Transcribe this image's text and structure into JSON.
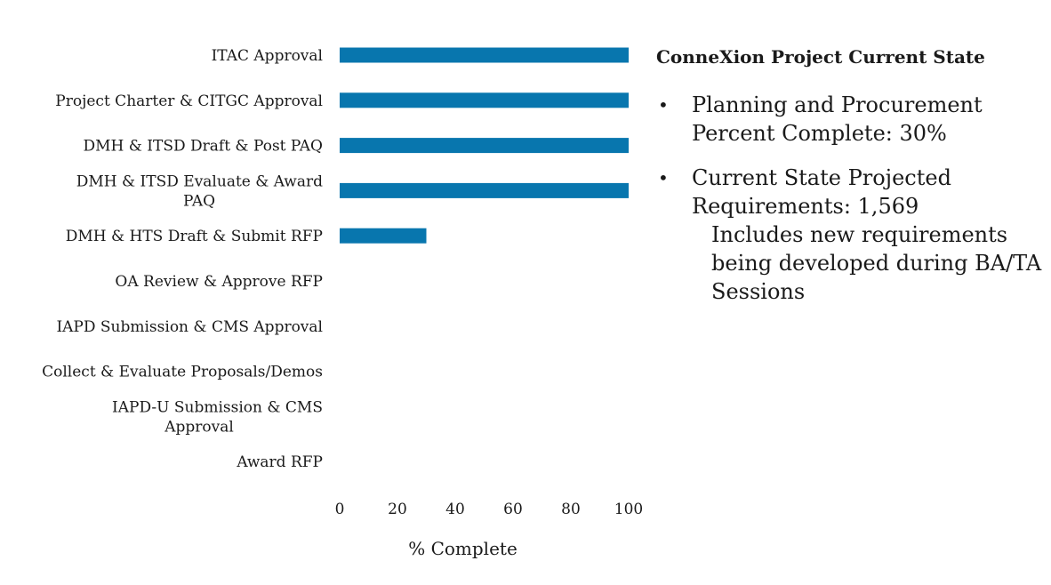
{
  "chart_data": {
    "type": "bar",
    "orientation": "horizontal",
    "categories": [
      "ITAC Approval",
      "Project Charter & CITGC Approval",
      "DMH & ITSD Draft & Post PAQ",
      [
        "DMH & ITSD Evaluate & Award",
        "PAQ"
      ],
      "DMH & HTS Draft & Submit RFP",
      "OA Review & Approve RFP",
      "IAPD Submission & CMS Approval",
      "Collect & Evaluate Proposals/Demos",
      [
        "IAPD-U Submission & CMS",
        "Approval"
      ],
      "Award RFP"
    ],
    "values": [
      100,
      100,
      100,
      100,
      30,
      0,
      0,
      0,
      0,
      0
    ],
    "xlabel": "% Complete",
    "xlim": [
      0,
      100
    ],
    "xticks": [
      "0",
      "20",
      "40",
      "60",
      "80",
      "100"
    ],
    "grid": false,
    "bar_color": "#0876AE"
  },
  "panel": {
    "title": "ConneXion Project Current State",
    "bullet_symbol": "•",
    "bullets": [
      {
        "line1": "Planning and Procurement",
        "line2": "Percent Complete: 30%"
      },
      {
        "line1": "Current State Projected",
        "line2": "Requirements: 1,569",
        "sub1": "Includes new requirements",
        "sub2": "being developed during BA/TA",
        "sub3": "Sessions"
      }
    ]
  }
}
